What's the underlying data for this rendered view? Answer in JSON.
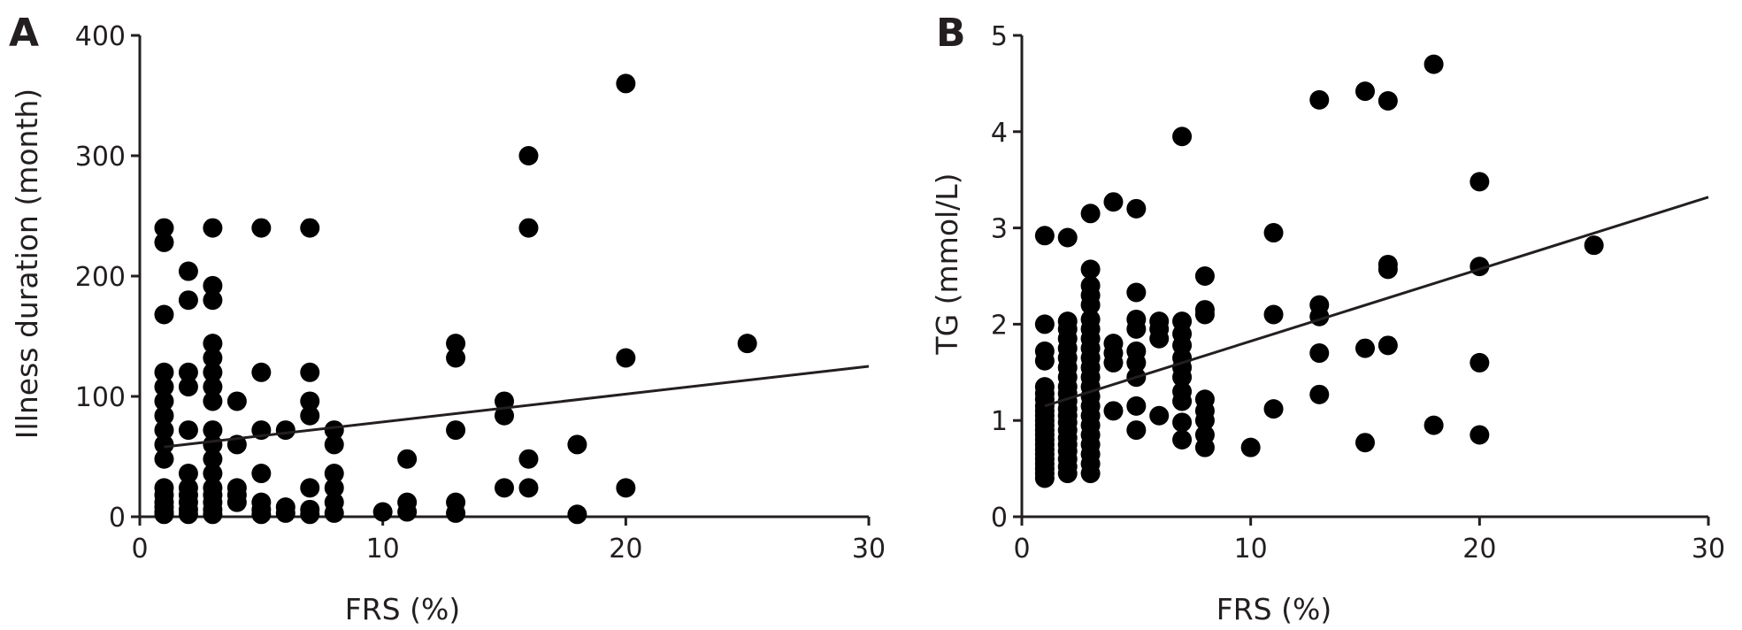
{
  "figure": {
    "panels": [
      "A",
      "B"
    ]
  },
  "chart_data": [
    {
      "type": "scatter",
      "panel": "A",
      "xlabel": "FRS (%)",
      "ylabel": "Illness duration (month)",
      "xlim": [
        0,
        30
      ],
      "ylim": [
        0,
        400
      ],
      "xticks": [
        0,
        10,
        20,
        30
      ],
      "yticks": [
        0,
        100,
        200,
        300,
        400
      ],
      "grid": false,
      "trendline": {
        "x": [
          1,
          30
        ],
        "y": [
          58,
          125
        ]
      },
      "points": [
        [
          1,
          240
        ],
        [
          1,
          228
        ],
        [
          1,
          168
        ],
        [
          1,
          120
        ],
        [
          1,
          108
        ],
        [
          1,
          96
        ],
        [
          1,
          84
        ],
        [
          1,
          72
        ],
        [
          1,
          60
        ],
        [
          1,
          48
        ],
        [
          1,
          24
        ],
        [
          1,
          18
        ],
        [
          1,
          12
        ],
        [
          1,
          8
        ],
        [
          1,
          4
        ],
        [
          1,
          2
        ],
        [
          2,
          204
        ],
        [
          2,
          180
        ],
        [
          2,
          120
        ],
        [
          2,
          108
        ],
        [
          2,
          72
        ],
        [
          2,
          36
        ],
        [
          2,
          24
        ],
        [
          2,
          18
        ],
        [
          2,
          12
        ],
        [
          2,
          6
        ],
        [
          2,
          2
        ],
        [
          3,
          240
        ],
        [
          3,
          192
        ],
        [
          3,
          180
        ],
        [
          3,
          144
        ],
        [
          3,
          132
        ],
        [
          3,
          120
        ],
        [
          3,
          108
        ],
        [
          3,
          96
        ],
        [
          3,
          72
        ],
        [
          3,
          60
        ],
        [
          3,
          48
        ],
        [
          3,
          36
        ],
        [
          3,
          24
        ],
        [
          3,
          18
        ],
        [
          3,
          12
        ],
        [
          3,
          6
        ],
        [
          3,
          2
        ],
        [
          4,
          96
        ],
        [
          4,
          60
        ],
        [
          4,
          24
        ],
        [
          4,
          18
        ],
        [
          4,
          12
        ],
        [
          5,
          240
        ],
        [
          5,
          120
        ],
        [
          5,
          72
        ],
        [
          5,
          36
        ],
        [
          5,
          12
        ],
        [
          5,
          6
        ],
        [
          5,
          2
        ],
        [
          6,
          72
        ],
        [
          6,
          8
        ],
        [
          6,
          3
        ],
        [
          7,
          240
        ],
        [
          7,
          120
        ],
        [
          7,
          96
        ],
        [
          7,
          84
        ],
        [
          7,
          24
        ],
        [
          7,
          6
        ],
        [
          7,
          2
        ],
        [
          8,
          72
        ],
        [
          8,
          60
        ],
        [
          8,
          36
        ],
        [
          8,
          24
        ],
        [
          8,
          12
        ],
        [
          8,
          3
        ],
        [
          10,
          4
        ],
        [
          11,
          48
        ],
        [
          11,
          12
        ],
        [
          11,
          4
        ],
        [
          13,
          144
        ],
        [
          13,
          132
        ],
        [
          13,
          72
        ],
        [
          13,
          12
        ],
        [
          13,
          3
        ],
        [
          15,
          96
        ],
        [
          15,
          84
        ],
        [
          15,
          24
        ],
        [
          16,
          300
        ],
        [
          16,
          240
        ],
        [
          16,
          48
        ],
        [
          16,
          24
        ],
        [
          18,
          60
        ],
        [
          18,
          2
        ],
        [
          20,
          360
        ],
        [
          20,
          132
        ],
        [
          20,
          24
        ],
        [
          25,
          144
        ]
      ]
    },
    {
      "type": "scatter",
      "panel": "B",
      "xlabel": "FRS (%)",
      "ylabel": "TG (mmol/L)",
      "xlim": [
        0,
        30
      ],
      "ylim": [
        0,
        5
      ],
      "xticks": [
        0,
        10,
        20,
        30
      ],
      "yticks": [
        0,
        1,
        2,
        3,
        4,
        5
      ],
      "grid": false,
      "trendline": {
        "x": [
          1,
          30
        ],
        "y": [
          1.15,
          3.32
        ]
      },
      "points": [
        [
          1,
          2.92
        ],
        [
          1,
          2.0
        ],
        [
          1,
          1.72
        ],
        [
          1,
          1.62
        ],
        [
          1,
          1.35
        ],
        [
          1,
          1.28
        ],
        [
          1,
          1.22
        ],
        [
          1,
          1.15
        ],
        [
          1,
          1.1
        ],
        [
          1,
          1.05
        ],
        [
          1,
          1.0
        ],
        [
          1,
          0.95
        ],
        [
          1,
          0.9
        ],
        [
          1,
          0.85
        ],
        [
          1,
          0.8
        ],
        [
          1,
          0.75
        ],
        [
          1,
          0.7
        ],
        [
          1,
          0.65
        ],
        [
          1,
          0.6
        ],
        [
          1,
          0.55
        ],
        [
          1,
          0.5
        ],
        [
          1,
          0.45
        ],
        [
          1,
          0.4
        ],
        [
          2,
          2.9
        ],
        [
          2,
          2.03
        ],
        [
          2,
          1.95
        ],
        [
          2,
          1.85
        ],
        [
          2,
          1.75
        ],
        [
          2,
          1.65
        ],
        [
          2,
          1.55
        ],
        [
          2,
          1.45
        ],
        [
          2,
          1.35
        ],
        [
          2,
          1.28
        ],
        [
          2,
          1.2
        ],
        [
          2,
          1.12
        ],
        [
          2,
          1.05
        ],
        [
          2,
          0.98
        ],
        [
          2,
          0.9
        ],
        [
          2,
          0.82
        ],
        [
          2,
          0.75
        ],
        [
          2,
          0.68
        ],
        [
          2,
          0.6
        ],
        [
          2,
          0.52
        ],
        [
          2,
          0.45
        ],
        [
          3,
          3.15
        ],
        [
          3,
          2.57
        ],
        [
          3,
          2.4
        ],
        [
          3,
          2.3
        ],
        [
          3,
          2.2
        ],
        [
          3,
          2.05
        ],
        [
          3,
          1.95
        ],
        [
          3,
          1.85
        ],
        [
          3,
          1.75
        ],
        [
          3,
          1.65
        ],
        [
          3,
          1.55
        ],
        [
          3,
          1.45
        ],
        [
          3,
          1.35
        ],
        [
          3,
          1.25
        ],
        [
          3,
          1.15
        ],
        [
          3,
          1.05
        ],
        [
          3,
          0.95
        ],
        [
          3,
          0.85
        ],
        [
          3,
          0.75
        ],
        [
          3,
          0.65
        ],
        [
          3,
          0.55
        ],
        [
          3,
          0.45
        ],
        [
          4,
          3.27
        ],
        [
          4,
          1.8
        ],
        [
          4,
          1.7
        ],
        [
          4,
          1.6
        ],
        [
          4,
          1.1
        ],
        [
          5,
          3.2
        ],
        [
          5,
          2.33
        ],
        [
          5,
          2.05
        ],
        [
          5,
          1.95
        ],
        [
          5,
          1.72
        ],
        [
          5,
          1.6
        ],
        [
          5,
          1.45
        ],
        [
          5,
          1.15
        ],
        [
          5,
          0.9
        ],
        [
          6,
          2.03
        ],
        [
          6,
          1.95
        ],
        [
          6,
          1.85
        ],
        [
          6,
          1.05
        ],
        [
          7,
          3.95
        ],
        [
          7,
          2.03
        ],
        [
          7,
          1.9
        ],
        [
          7,
          1.78
        ],
        [
          7,
          1.65
        ],
        [
          7,
          1.55
        ],
        [
          7,
          1.45
        ],
        [
          7,
          1.3
        ],
        [
          7,
          1.2
        ],
        [
          7,
          0.98
        ],
        [
          7,
          0.8
        ],
        [
          8,
          2.5
        ],
        [
          8,
          2.15
        ],
        [
          8,
          2.1
        ],
        [
          8,
          1.22
        ],
        [
          8,
          1.1
        ],
        [
          8,
          1.0
        ],
        [
          8,
          0.85
        ],
        [
          8,
          0.72
        ],
        [
          10,
          0.72
        ],
        [
          11,
          2.95
        ],
        [
          11,
          2.1
        ],
        [
          11,
          1.12
        ],
        [
          13,
          4.33
        ],
        [
          13,
          2.2
        ],
        [
          13,
          2.08
        ],
        [
          13,
          1.7
        ],
        [
          13,
          1.27
        ],
        [
          15,
          4.42
        ],
        [
          15,
          1.75
        ],
        [
          15,
          0.77
        ],
        [
          16,
          4.32
        ],
        [
          16,
          2.62
        ],
        [
          16,
          2.57
        ],
        [
          16,
          1.78
        ],
        [
          18,
          4.7
        ],
        [
          18,
          0.95
        ],
        [
          20,
          3.48
        ],
        [
          20,
          2.6
        ],
        [
          20,
          1.6
        ],
        [
          20,
          0.85
        ],
        [
          25,
          2.82
        ]
      ]
    }
  ]
}
